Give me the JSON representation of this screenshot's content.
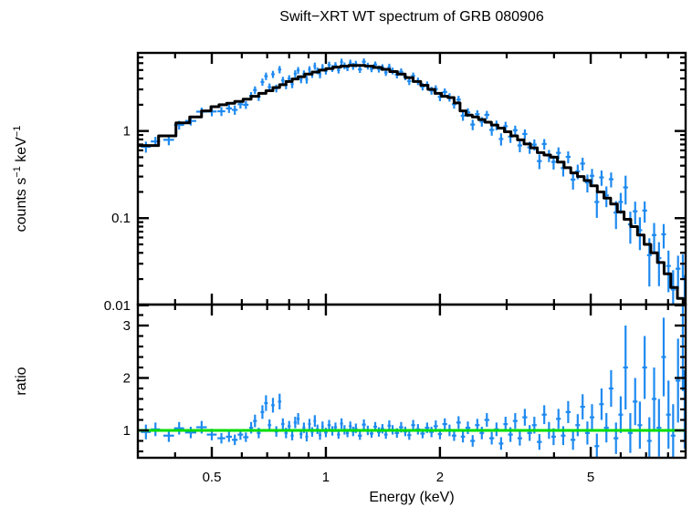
{
  "title": "Swift−XRT WT spectrum of GRB 080906",
  "colors": {
    "data_points": "#1E8AF0",
    "model_line": "#000000",
    "unity_line": "#00DD00",
    "frame": "#000000",
    "background": "#FFFFFF"
  },
  "chart_data": {
    "type": "scatter",
    "title": "Swift−XRT WT spectrum of GRB 080906",
    "xlabel": "Energy (keV)",
    "x_scale": "log",
    "x_range": [
      0.319,
      8.9
    ],
    "x_ticks_major": [
      {
        "v": 0.5,
        "label": "0.5"
      },
      {
        "v": 1,
        "label": "1"
      },
      {
        "v": 2,
        "label": "2"
      },
      {
        "v": 5,
        "label": "5"
      }
    ],
    "x_ticks_minor": [
      0.4,
      0.6,
      0.7,
      0.8,
      0.9,
      3,
      4,
      6,
      7,
      8
    ],
    "legend": "none",
    "grid": false,
    "panels": [
      {
        "name": "spectrum",
        "ylabel_parts": [
          "counts s",
          "−1",
          " keV",
          "−1"
        ],
        "y_scale": "log",
        "y_range": [
          0.0102,
          7.87
        ],
        "y_ticks_major": [
          {
            "v": 1,
            "label": "1"
          },
          {
            "v": 0.1,
            "label": "0.1"
          },
          {
            "v": 0.01,
            "label": "0.01"
          }
        ],
        "y_ticks_minor": [
          0.02,
          0.03,
          0.04,
          0.05,
          0.06,
          0.07,
          0.08,
          0.09,
          0.2,
          0.3,
          0.4,
          0.5,
          0.6,
          0.7,
          0.8,
          0.9,
          2,
          3,
          4,
          5,
          6,
          7
        ],
        "model_curve": [
          [
            0.34,
            0.68
          ],
          [
            0.385,
            0.88
          ],
          [
            0.42,
            1.24
          ],
          [
            0.455,
            1.45
          ],
          [
            0.485,
            1.7
          ],
          [
            0.51,
            1.9
          ],
          [
            0.535,
            2.0
          ],
          [
            0.56,
            2.08
          ],
          [
            0.59,
            2.18
          ],
          [
            0.62,
            2.32
          ],
          [
            0.65,
            2.5
          ],
          [
            0.68,
            2.7
          ],
          [
            0.71,
            2.9
          ],
          [
            0.74,
            3.15
          ],
          [
            0.77,
            3.4
          ],
          [
            0.8,
            3.7
          ],
          [
            0.83,
            3.95
          ],
          [
            0.86,
            4.2
          ],
          [
            0.9,
            4.5
          ],
          [
            0.94,
            4.75
          ],
          [
            0.98,
            5.0
          ],
          [
            1.02,
            5.2
          ],
          [
            1.07,
            5.4
          ],
          [
            1.12,
            5.55
          ],
          [
            1.18,
            5.65
          ],
          [
            1.24,
            5.65
          ],
          [
            1.3,
            5.55
          ],
          [
            1.37,
            5.35
          ],
          [
            1.44,
            5.1
          ],
          [
            1.51,
            4.8
          ],
          [
            1.58,
            4.5
          ],
          [
            1.66,
            4.1
          ],
          [
            1.74,
            3.7
          ],
          [
            1.82,
            3.35
          ],
          [
            1.9,
            3.0
          ],
          [
            1.98,
            2.7
          ],
          [
            2.06,
            2.5
          ],
          [
            2.14,
            2.42
          ],
          [
            2.22,
            2.1
          ],
          [
            2.3,
            1.7
          ],
          [
            2.39,
            1.52
          ],
          [
            2.48,
            1.45
          ],
          [
            2.58,
            1.35
          ],
          [
            2.68,
            1.26
          ],
          [
            2.79,
            1.17
          ],
          [
            2.9,
            1.08
          ],
          [
            3.02,
            0.98
          ],
          [
            3.14,
            0.88
          ],
          [
            3.27,
            0.79
          ],
          [
            3.4,
            0.71
          ],
          [
            3.54,
            0.64
          ],
          [
            3.69,
            0.565
          ],
          [
            3.84,
            0.53
          ],
          [
            4.0,
            0.5
          ],
          [
            4.17,
            0.44
          ],
          [
            4.34,
            0.38
          ],
          [
            4.52,
            0.33
          ],
          [
            4.71,
            0.3
          ],
          [
            4.9,
            0.27
          ],
          [
            5.1,
            0.235
          ],
          [
            5.31,
            0.2
          ],
          [
            5.53,
            0.17
          ],
          [
            5.76,
            0.145
          ],
          [
            6.0,
            0.118
          ],
          [
            6.25,
            0.097
          ],
          [
            6.51,
            0.08
          ],
          [
            6.78,
            0.064
          ],
          [
            7.06,
            0.05
          ],
          [
            7.35,
            0.04
          ],
          [
            7.65,
            0.031
          ],
          [
            7.97,
            0.023
          ],
          [
            8.3,
            0.016
          ],
          [
            8.64,
            0.012
          ],
          [
            8.9,
            0.01
          ]
        ]
      },
      {
        "name": "ratio",
        "ylabel": "ratio",
        "y_scale": "linear",
        "y_range": [
          0.478,
          3.4
        ],
        "unity_line": 1,
        "y_ticks_major": [
          {
            "v": 1,
            "label": "1"
          },
          {
            "v": 2,
            "label": "2"
          },
          {
            "v": 3,
            "label": "3"
          }
        ],
        "y_ticks_minor": [
          0.6,
          0.8,
          1.2,
          1.4,
          1.6,
          1.8,
          2.2,
          2.4,
          2.6,
          2.8,
          3.2
        ]
      }
    ],
    "points_format": [
      "energy_keV",
      "ratio",
      "ratio_error"
    ],
    "points_note": "spectrum panel value = ratio × model(energy); error = ratio_error × model(energy)",
    "points": [
      [
        0.335,
        0.97,
        0.14
      ],
      [
        0.355,
        1.02,
        0.13
      ],
      [
        0.385,
        0.9,
        0.12
      ],
      [
        0.41,
        1.04,
        0.12
      ],
      [
        0.44,
        0.96,
        0.11
      ],
      [
        0.47,
        1.06,
        0.12
      ],
      [
        0.5,
        0.92,
        0.11
      ],
      [
        0.53,
        0.85,
        0.1
      ],
      [
        0.555,
        0.88,
        0.1
      ],
      [
        0.575,
        0.82,
        0.1
      ],
      [
        0.595,
        0.92,
        0.1
      ],
      [
        0.615,
        0.87,
        0.09
      ],
      [
        0.635,
        1.05,
        0.11
      ],
      [
        0.65,
        1.18,
        0.12
      ],
      [
        0.665,
        0.95,
        0.1
      ],
      [
        0.68,
        1.35,
        0.13
      ],
      [
        0.695,
        1.52,
        0.15
      ],
      [
        0.71,
        1.1,
        0.11
      ],
      [
        0.725,
        1.48,
        0.14
      ],
      [
        0.74,
        0.98,
        0.1
      ],
      [
        0.755,
        1.55,
        0.15
      ],
      [
        0.77,
        1.12,
        0.11
      ],
      [
        0.785,
        0.95,
        0.1
      ],
      [
        0.8,
        1.08,
        0.1
      ],
      [
        0.815,
        0.9,
        0.09
      ],
      [
        0.83,
        1.15,
        0.11
      ],
      [
        0.845,
        1.22,
        0.11
      ],
      [
        0.86,
        0.93,
        0.09
      ],
      [
        0.875,
        1.05,
        0.1
      ],
      [
        0.89,
        0.88,
        0.09
      ],
      [
        0.905,
        1.12,
        0.1
      ],
      [
        0.92,
        0.97,
        0.09
      ],
      [
        0.935,
        1.18,
        0.11
      ],
      [
        0.95,
        1.02,
        0.09
      ],
      [
        0.965,
        0.91,
        0.09
      ],
      [
        0.98,
        1.07,
        0.1
      ],
      [
        1.0,
        0.96,
        0.09
      ],
      [
        1.02,
        1.1,
        0.1
      ],
      [
        1.04,
        0.99,
        0.09
      ],
      [
        1.06,
        1.06,
        0.09
      ],
      [
        1.08,
        0.92,
        0.08
      ],
      [
        1.1,
        1.13,
        0.1
      ],
      [
        1.12,
        1.01,
        0.09
      ],
      [
        1.14,
        0.95,
        0.08
      ],
      [
        1.16,
        1.08,
        0.09
      ],
      [
        1.18,
        0.98,
        0.09
      ],
      [
        1.2,
        1.04,
        0.09
      ],
      [
        1.23,
        0.9,
        0.08
      ],
      [
        1.26,
        1.11,
        0.1
      ],
      [
        1.29,
        1.0,
        0.09
      ],
      [
        1.32,
        0.94,
        0.08
      ],
      [
        1.35,
        1.07,
        0.09
      ],
      [
        1.38,
        0.97,
        0.09
      ],
      [
        1.41,
        1.03,
        0.09
      ],
      [
        1.44,
        0.92,
        0.08
      ],
      [
        1.47,
        1.09,
        0.1
      ],
      [
        1.5,
        1.01,
        0.09
      ],
      [
        1.54,
        0.95,
        0.09
      ],
      [
        1.58,
        1.06,
        0.1
      ],
      [
        1.62,
        0.98,
        0.09
      ],
      [
        1.66,
        0.91,
        0.09
      ],
      [
        1.7,
        1.1,
        0.1
      ],
      [
        1.75,
        1.02,
        0.1
      ],
      [
        1.8,
        0.94,
        0.09
      ],
      [
        1.85,
        1.05,
        0.1
      ],
      [
        1.9,
        0.97,
        0.1
      ],
      [
        1.95,
        1.08,
        0.11
      ],
      [
        2.0,
        0.93,
        0.1
      ],
      [
        2.06,
        1.12,
        0.11
      ],
      [
        2.12,
        1.0,
        0.11
      ],
      [
        2.18,
        0.9,
        0.1
      ],
      [
        2.24,
        1.15,
        0.12
      ],
      [
        2.3,
        0.88,
        0.11
      ],
      [
        2.37,
        1.05,
        0.12
      ],
      [
        2.44,
        0.8,
        0.11
      ],
      [
        2.51,
        1.1,
        0.12
      ],
      [
        2.58,
        0.95,
        0.12
      ],
      [
        2.66,
        1.2,
        0.13
      ],
      [
        2.74,
        0.85,
        0.12
      ],
      [
        2.82,
        1.02,
        0.13
      ],
      [
        2.9,
        0.75,
        0.12
      ],
      [
        2.98,
        1.12,
        0.14
      ],
      [
        3.07,
        0.92,
        0.14
      ],
      [
        3.16,
        1.18,
        0.15
      ],
      [
        3.25,
        0.85,
        0.14
      ],
      [
        3.35,
        1.25,
        0.16
      ],
      [
        3.45,
        0.95,
        0.15
      ],
      [
        3.55,
        1.1,
        0.16
      ],
      [
        3.66,
        0.78,
        0.15
      ],
      [
        3.77,
        1.3,
        0.18
      ],
      [
        3.88,
        1.0,
        0.16
      ],
      [
        3.99,
        0.88,
        0.16
      ],
      [
        4.11,
        1.22,
        0.19
      ],
      [
        4.23,
        0.9,
        0.18
      ],
      [
        4.36,
        1.35,
        0.21
      ],
      [
        4.49,
        0.82,
        0.19
      ],
      [
        4.62,
        1.1,
        0.21
      ],
      [
        4.76,
        1.45,
        0.24
      ],
      [
        4.9,
        0.95,
        0.22
      ],
      [
        5.04,
        1.25,
        0.25
      ],
      [
        5.19,
        0.7,
        0.24
      ],
      [
        5.34,
        1.5,
        0.3
      ],
      [
        5.5,
        1.05,
        0.28
      ],
      [
        5.66,
        1.8,
        0.35
      ],
      [
        5.83,
        0.85,
        0.3
      ],
      [
        6.0,
        1.3,
        0.35
      ],
      [
        6.18,
        2.2,
        0.8
      ],
      [
        6.36,
        0.95,
        0.38
      ],
      [
        6.55,
        1.55,
        0.45
      ],
      [
        6.74,
        1.1,
        0.45
      ],
      [
        6.94,
        2.2,
        0.6
      ],
      [
        7.14,
        0.8,
        0.45
      ],
      [
        7.35,
        1.6,
        0.6
      ],
      [
        7.57,
        1.05,
        0.55
      ],
      [
        7.79,
        2.4,
        0.75
      ],
      [
        8.02,
        1.3,
        0.65
      ],
      [
        8.25,
        0.9,
        0.6
      ],
      [
        8.5,
        1.95,
        0.8
      ],
      [
        8.75,
        2.6,
        0.85
      ],
      [
        8.85,
        1.4,
        0.75
      ]
    ]
  }
}
